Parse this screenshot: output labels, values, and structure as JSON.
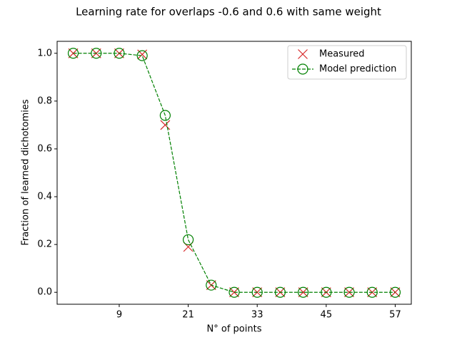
{
  "chart_data": {
    "type": "line",
    "title": "Learning rate for overlaps -0.6 and 0.6 with same weight",
    "xlabel": "N° of points",
    "ylabel": "Fraction of learned dichotomies",
    "x": [
      1,
      5,
      9,
      13,
      17,
      21,
      25,
      29,
      33,
      37,
      41,
      45,
      49,
      53,
      57
    ],
    "series": [
      {
        "name": "Measured",
        "color": "#d62728",
        "marker": "x",
        "linestyle": "none",
        "values": [
          1.0,
          1.0,
          1.0,
          0.995,
          0.7,
          0.19,
          0.03,
          0.0,
          0.0,
          0.0,
          0.0,
          0.0,
          0.0,
          0.0,
          0.0
        ]
      },
      {
        "name": "Model prediction",
        "color": "#008000",
        "marker": "o",
        "linestyle": "dashed",
        "values": [
          1.0,
          1.0,
          1.0,
          0.99,
          0.74,
          0.22,
          0.03,
          0.0,
          0.0,
          0.0,
          0.0,
          0.0,
          0.0,
          0.0,
          0.0
        ]
      }
    ],
    "xlim": [
      -1.8,
      59.8
    ],
    "ylim": [
      -0.05,
      1.05
    ],
    "xticks": [
      9,
      21,
      33,
      45,
      57
    ],
    "yticks": [
      {
        "value": 0,
        "label": "0.0"
      },
      {
        "value": 0.2,
        "label": "0.2"
      },
      {
        "value": 0.4,
        "label": "0.4"
      },
      {
        "value": 0.6,
        "label": "0.6"
      },
      {
        "value": 0.8,
        "label": "0.8"
      },
      {
        "value": 1,
        "label": "1.0"
      }
    ],
    "legend": "upper right"
  }
}
